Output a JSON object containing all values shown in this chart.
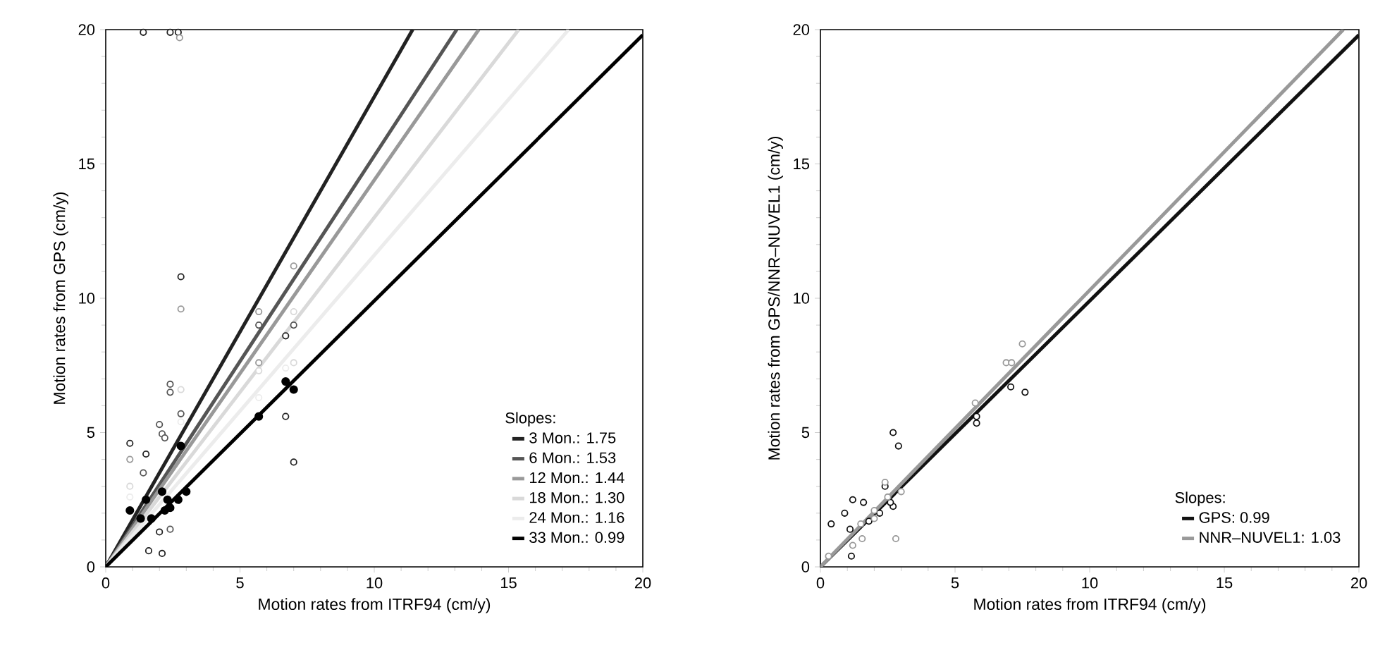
{
  "chart_data": [
    {
      "type": "scatter",
      "xlabel": "Motion rates from ITRF94 (cm/y)",
      "ylabel": "Motion rates from GPS (cm/y)",
      "xlim": [
        0,
        20
      ],
      "ylim": [
        0,
        20
      ],
      "xticks": [
        0,
        5,
        10,
        15,
        20
      ],
      "yticks": [
        0,
        5,
        10,
        15,
        20
      ],
      "legend": "bottom right",
      "legend_title": "Slopes:",
      "series": [
        {
          "name": "3 Mon.: 1.75",
          "type": "line",
          "color": "#222222",
          "x": [
            0,
            11.43
          ],
          "values": [
            0,
            20
          ]
        },
        {
          "name": "6 Mon.: 1.53",
          "type": "line",
          "color": "#555555",
          "x": [
            0,
            13.07
          ],
          "values": [
            0,
            20
          ]
        },
        {
          "name": "12 Mon.: 1.44",
          "type": "line",
          "color": "#999999",
          "x": [
            0,
            13.89
          ],
          "values": [
            0,
            20
          ]
        },
        {
          "name": "18 Mon.: 1.30",
          "type": "line",
          "color": "#d9d9d9",
          "x": [
            0,
            15.38
          ],
          "values": [
            0,
            20
          ]
        },
        {
          "name": "24 Mon.: 1.16",
          "type": "line",
          "color": "#ececec",
          "x": [
            0,
            17.24
          ],
          "values": [
            0,
            20
          ]
        },
        {
          "name": "33 Mon.: 0.99",
          "type": "line",
          "color": "#000000",
          "x": [
            0,
            20
          ],
          "values": [
            0,
            19.8
          ]
        },
        {
          "marker": "circle",
          "color": "#222222",
          "x": [
            1.4,
            2.4,
            2.7,
            2.8,
            0.9,
            1.5,
            6.7,
            6.7,
            7.0,
            2.0,
            1.6,
            2.1
          ],
          "values": [
            19.9,
            19.9,
            19.9,
            10.8,
            4.6,
            4.2,
            8.6,
            5.6,
            3.9,
            1.3,
            0.6,
            0.5
          ]
        },
        {
          "marker": "circle",
          "color": "#555555",
          "x": [
            5.7,
            7.0,
            2.4,
            2.4,
            2.8,
            2.0,
            2.1,
            2.2,
            1.4,
            2.4
          ],
          "values": [
            9.0,
            9.0,
            6.8,
            6.5,
            5.7,
            5.3,
            4.95,
            4.8,
            3.5,
            1.4
          ]
        },
        {
          "marker": "circle",
          "color": "#999999",
          "x": [
            2.75,
            7.0,
            5.7,
            5.7,
            0.9,
            2.8
          ],
          "values": [
            19.7,
            11.2,
            9.5,
            7.6,
            4.0,
            9.6
          ]
        },
        {
          "marker": "circle",
          "color": "#d9d9d9",
          "x": [
            7.0,
            5.7,
            2.8,
            0.9,
            7.0
          ],
          "values": [
            7.6,
            7.3,
            6.6,
            3.0,
            9.5
          ]
        },
        {
          "marker": "circle",
          "color": "#ececec",
          "x": [
            6.7,
            5.7,
            0.9,
            2.8
          ],
          "values": [
            7.4,
            6.3,
            2.6,
            5.4
          ]
        },
        {
          "marker": "circle",
          "color": "#000000",
          "x": [
            6.7,
            7.0,
            5.7,
            2.8,
            0.9,
            1.5,
            1.3,
            1.7,
            2.1,
            2.3,
            2.2,
            2.4,
            2.7,
            3.0
          ],
          "values": [
            6.9,
            6.6,
            5.6,
            4.5,
            2.1,
            2.5,
            1.8,
            1.8,
            2.8,
            2.5,
            2.1,
            2.2,
            2.5,
            2.8
          ]
        }
      ]
    },
    {
      "type": "scatter",
      "xlabel": "Motion rates from ITRF94 (cm/y)",
      "ylabel": "Motion rates from GPS/NNR–NUVEL1 (cm/y)",
      "xlim": [
        0,
        20
      ],
      "ylim": [
        0,
        20
      ],
      "xticks": [
        0,
        5,
        10,
        15,
        20
      ],
      "yticks": [
        0,
        5,
        10,
        15,
        20
      ],
      "legend": "bottom right",
      "legend_title": "Slopes:",
      "series": [
        {
          "name": "GPS: 0.99",
          "type": "line",
          "color": "#111111",
          "x": [
            0,
            20
          ],
          "values": [
            0,
            19.8
          ]
        },
        {
          "name": "NNR–NUVEL1: 1.03",
          "type": "line",
          "color": "#999999",
          "x": [
            0,
            19.42
          ],
          "values": [
            0,
            20
          ]
        },
        {
          "marker": "circle",
          "color": "#111111",
          "x": [
            7.07,
            7.6,
            5.8,
            5.8,
            2.7,
            2.9,
            1.2,
            1.6,
            0.9,
            0.4,
            1.15,
            2.4,
            2.7,
            1.1,
            1.8,
            2.2,
            2.6
          ],
          "values": [
            6.7,
            6.5,
            5.6,
            5.35,
            5.0,
            4.5,
            2.5,
            2.4,
            2.0,
            1.6,
            0.4,
            3.0,
            2.25,
            1.4,
            1.7,
            2.0,
            2.4
          ]
        },
        {
          "marker": "circle",
          "color": "#999999",
          "x": [
            6.9,
            7.1,
            7.5,
            5.75,
            2.4,
            3.0,
            2.8,
            1.2,
            1.55,
            2.0,
            0.3,
            1.5,
            2.0,
            2.5
          ],
          "values": [
            7.6,
            7.6,
            8.3,
            6.1,
            3.15,
            2.8,
            1.05,
            0.8,
            1.05,
            1.8,
            0.4,
            1.6,
            2.1,
            2.6
          ]
        }
      ]
    }
  ]
}
